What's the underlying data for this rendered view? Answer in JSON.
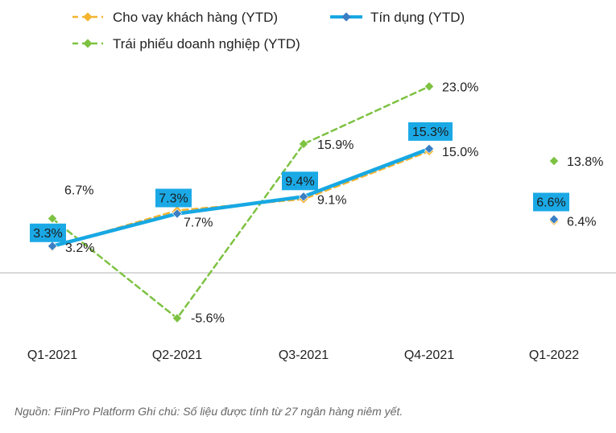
{
  "chart_data": {
    "type": "line",
    "categories": [
      "Q1-2021",
      "Q2-2021",
      "Q3-2021",
      "Q4-2021",
      "Q1-2022"
    ],
    "series": [
      {
        "name": "Cho vay khách hàng (YTD)",
        "color": "#f5b32e",
        "style": "dashed",
        "values": [
          3.2,
          7.7,
          9.1,
          15.0,
          6.4
        ],
        "labels": [
          "3.2%",
          "7.7%",
          "9.1%",
          "15.0%",
          "6.4%"
        ]
      },
      {
        "name": "Tín dụng (YTD)",
        "color": "#17a8e3",
        "style": "solid",
        "values": [
          3.3,
          7.3,
          9.4,
          15.3,
          6.6
        ],
        "labels": [
          "3.3%",
          "7.3%",
          "9.4%",
          "15.3%",
          "6.6%"
        ]
      },
      {
        "name": "Trái phiếu doanh nghiệp (YTD)",
        "color": "#7dc242",
        "style": "dashed",
        "values": [
          6.7,
          -5.6,
          15.9,
          23.0,
          13.8
        ],
        "labels": [
          "6.7%",
          "-5.6%",
          "15.9%",
          "23.0%",
          "13.8%"
        ]
      }
    ],
    "connected_points": 4,
    "ylim": [
      -9,
      30
    ],
    "zero_line": true,
    "legend_position": "top-left",
    "xlabel": "",
    "ylabel": ""
  },
  "source_note": "Nguồn: FiinPro Platform Ghi chú: Số liệu được tính từ 27 ngân hàng niêm yết.",
  "colors": {
    "highlight_box": "#1ba9e6",
    "marker_fill": "#3a7fc4",
    "axis": "#b3b3b3"
  }
}
